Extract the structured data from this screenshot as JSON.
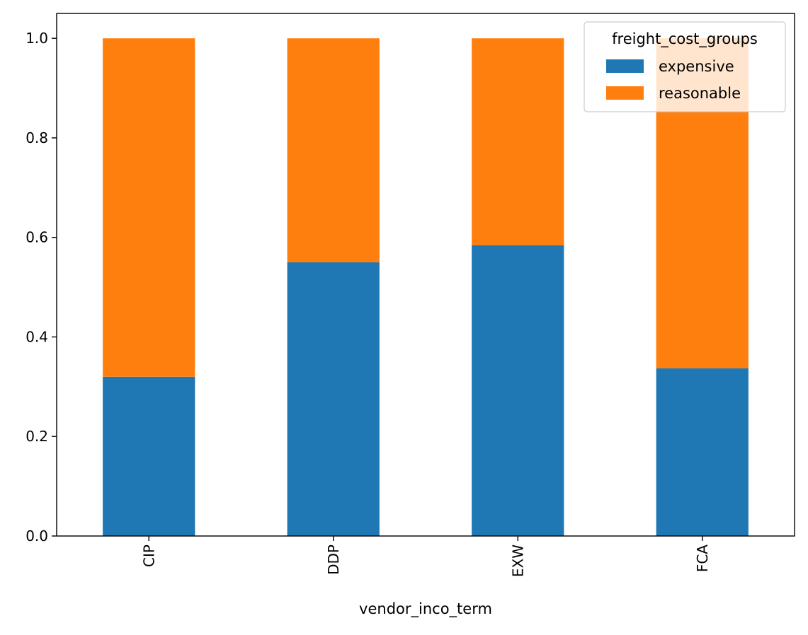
{
  "chart_data": {
    "type": "bar",
    "stacked": true,
    "title": "",
    "xlabel": "vendor_inco_term",
    "ylabel": "",
    "categories": [
      "CIP",
      "DDP",
      "EXW",
      "FCA"
    ],
    "series": [
      {
        "name": "expensive",
        "color": "#1f77b4",
        "values": [
          0.32,
          0.55,
          0.584,
          0.337
        ]
      },
      {
        "name": "reasonable",
        "color": "#ff7f0e",
        "values": [
          0.68,
          0.45,
          0.416,
          0.663
        ]
      }
    ],
    "ylim": [
      0,
      1.05
    ],
    "yticks": [
      0.0,
      0.2,
      0.4,
      0.6,
      0.8,
      1.0
    ],
    "ytick_labels": [
      "0.0",
      "0.2",
      "0.4",
      "0.6",
      "0.8",
      "1.0"
    ],
    "xtick_rotation": "vertical",
    "grid": false,
    "legend": {
      "title": "freight_cost_groups",
      "placement": "top-right"
    }
  }
}
